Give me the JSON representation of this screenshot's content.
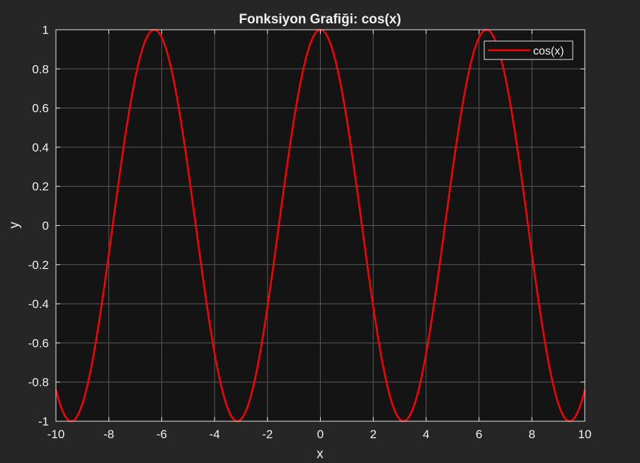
{
  "chart_data": {
    "type": "line",
    "title": "Fonksiyon Grafiği: cos(x)",
    "xlabel": "x",
    "ylabel": "y",
    "xlim": [
      -10,
      10
    ],
    "ylim": [
      -1,
      1
    ],
    "xticks": [
      -10,
      -8,
      -6,
      -4,
      -2,
      0,
      2,
      4,
      6,
      8,
      10
    ],
    "xtick_labels": [
      "-10",
      "-8",
      "-6",
      "-4",
      "-2",
      "0",
      "2",
      "4",
      "6",
      "8",
      "10"
    ],
    "yticks": [
      -1,
      -0.8,
      -0.6,
      -0.4,
      -0.2,
      0,
      0.2,
      0.4,
      0.6,
      0.8,
      1
    ],
    "ytick_labels": [
      "-1",
      "-0.8",
      "-0.6",
      "-0.4",
      "-0.2",
      "0",
      "0.2",
      "0.4",
      "0.6",
      "0.8",
      "1"
    ],
    "grid": true,
    "legend_position": "top-right",
    "series": [
      {
        "name": "cos(x)",
        "color": "#ff0000",
        "function": "cos",
        "x_range": [
          -10,
          10
        ],
        "sample_points": [
          {
            "x": -10,
            "y": -0.84
          },
          {
            "x": -9.42,
            "y": -1
          },
          {
            "x": -6.28,
            "y": 1
          },
          {
            "x": -3.14,
            "y": -1
          },
          {
            "x": 0,
            "y": 1
          },
          {
            "x": 3.14,
            "y": -1
          },
          {
            "x": 6.28,
            "y": 1
          },
          {
            "x": 9.42,
            "y": -1
          },
          {
            "x": 10,
            "y": -0.84
          }
        ]
      }
    ]
  },
  "colors": {
    "figure_background": "#262626",
    "axes_background": "#141414",
    "grid": "#5a5a5a",
    "axis_line": "#e6e6e6",
    "text": "#f0f0f0"
  }
}
